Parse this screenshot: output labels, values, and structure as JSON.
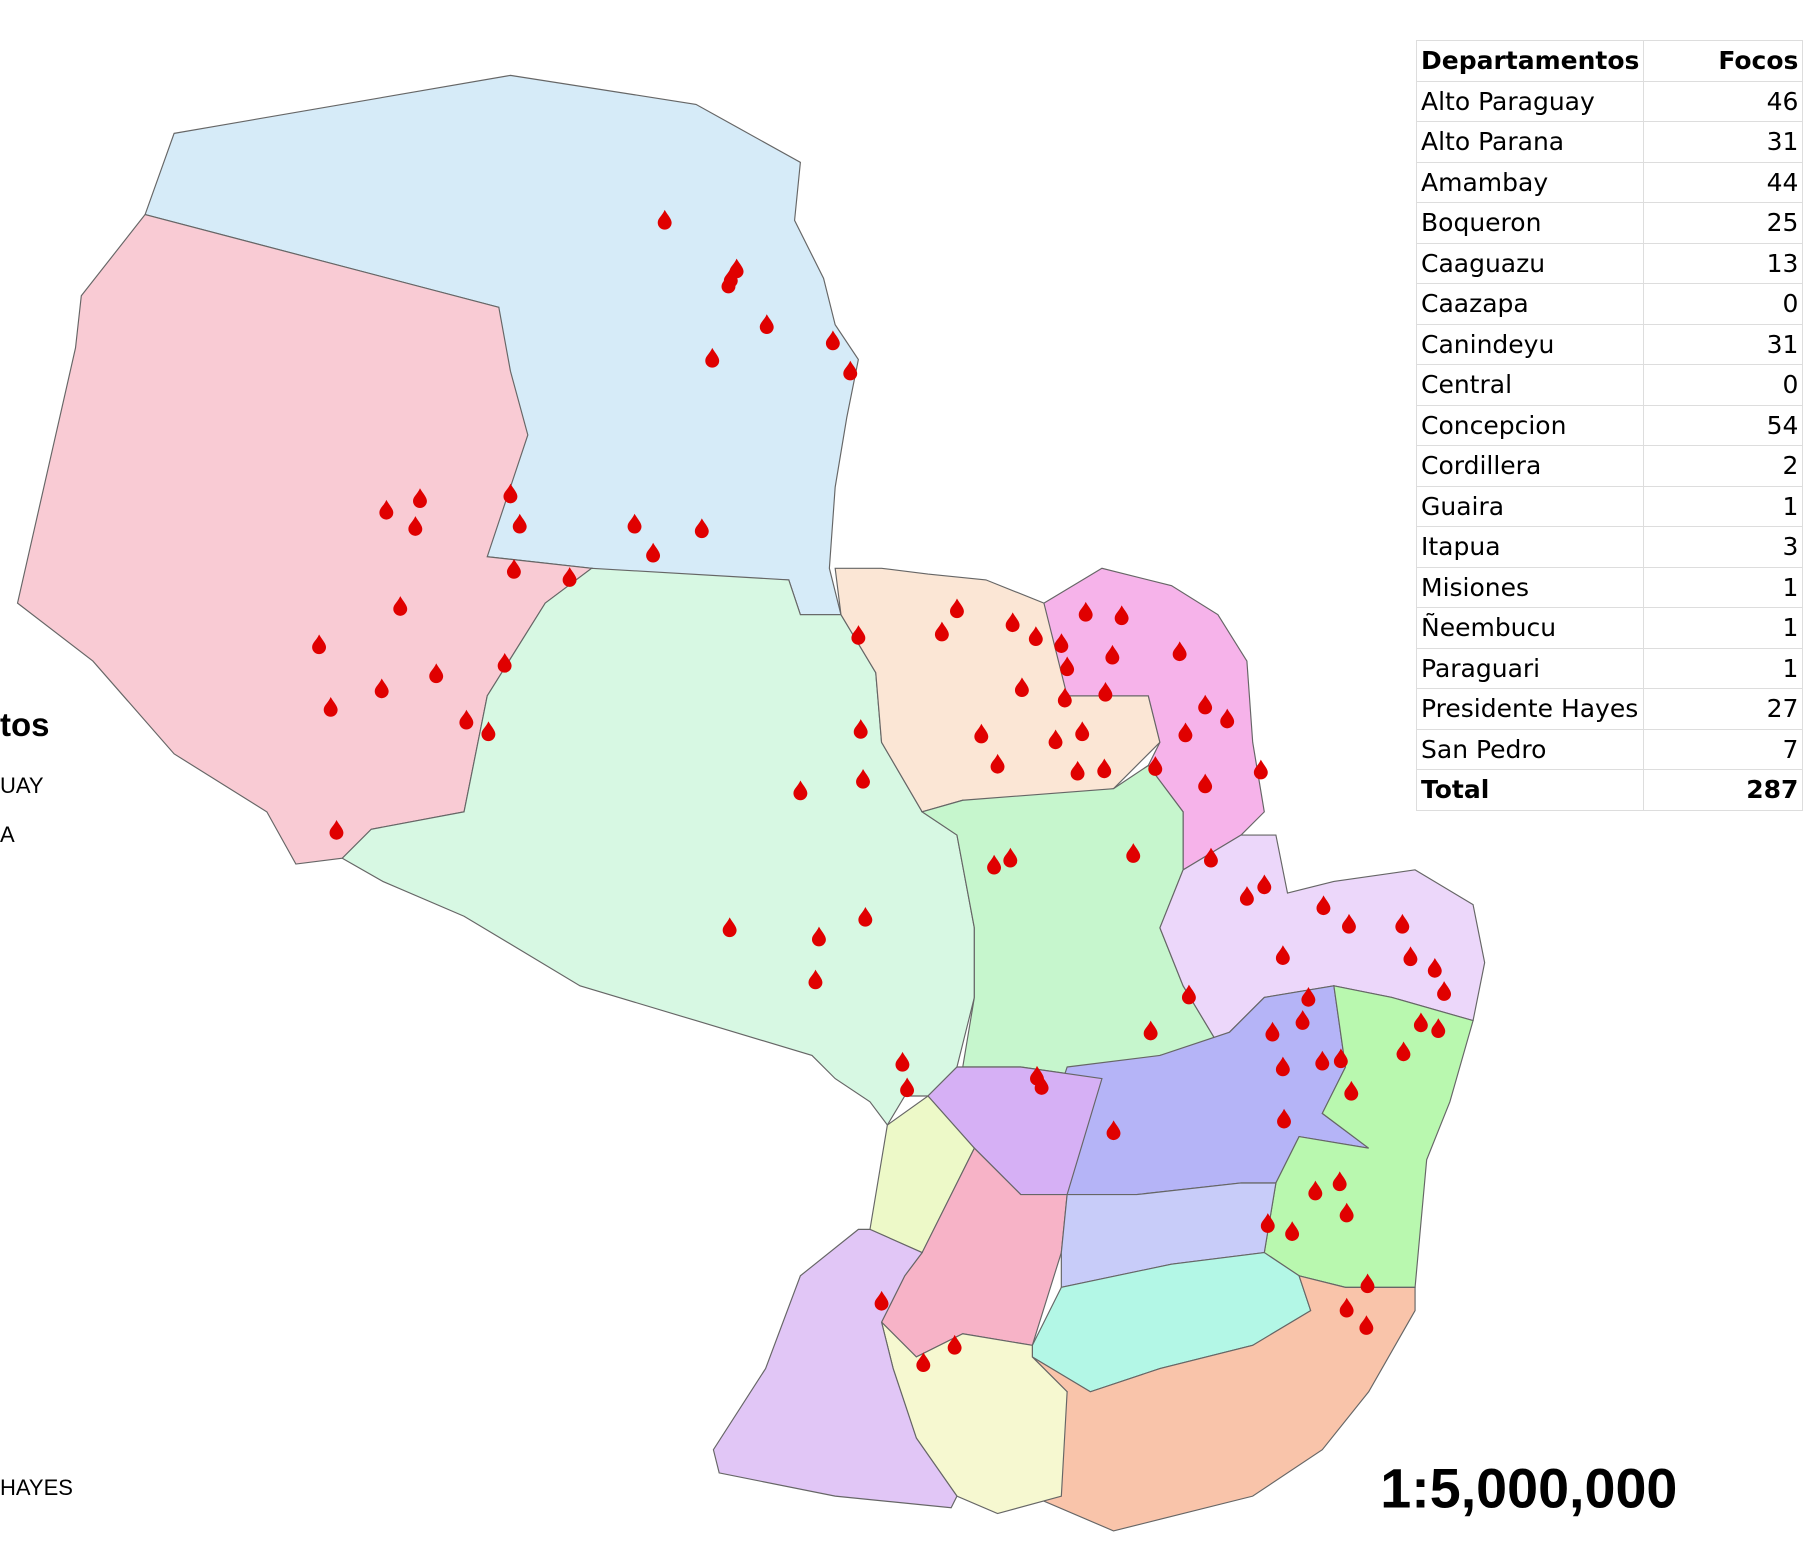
{
  "legend": {
    "heading": "tos",
    "items": [
      "UAY",
      "A",
      "HAYES"
    ]
  },
  "table": {
    "header": [
      "Departamentos",
      "Focos"
    ],
    "rows": [
      [
        "Alto Paraguay",
        46
      ],
      [
        "Alto Parana",
        31
      ],
      [
        "Amambay",
        44
      ],
      [
        "Boqueron",
        25
      ],
      [
        "Caaguazu",
        13
      ],
      [
        "Caazapa",
        0
      ],
      [
        "Canindeyu",
        31
      ],
      [
        "Central",
        0
      ],
      [
        "Concepcion",
        54
      ],
      [
        "Cordillera",
        2
      ],
      [
        "Guaira",
        1
      ],
      [
        "Itapua",
        3
      ],
      [
        "Misiones",
        1
      ],
      [
        "Ñeembucu",
        1
      ],
      [
        "Paraguari",
        1
      ],
      [
        "Presidente Hayes",
        27
      ],
      [
        "San Pedro",
        7
      ]
    ],
    "total": [
      "Total",
      287
    ]
  },
  "scale": "1:5,000,000"
}
